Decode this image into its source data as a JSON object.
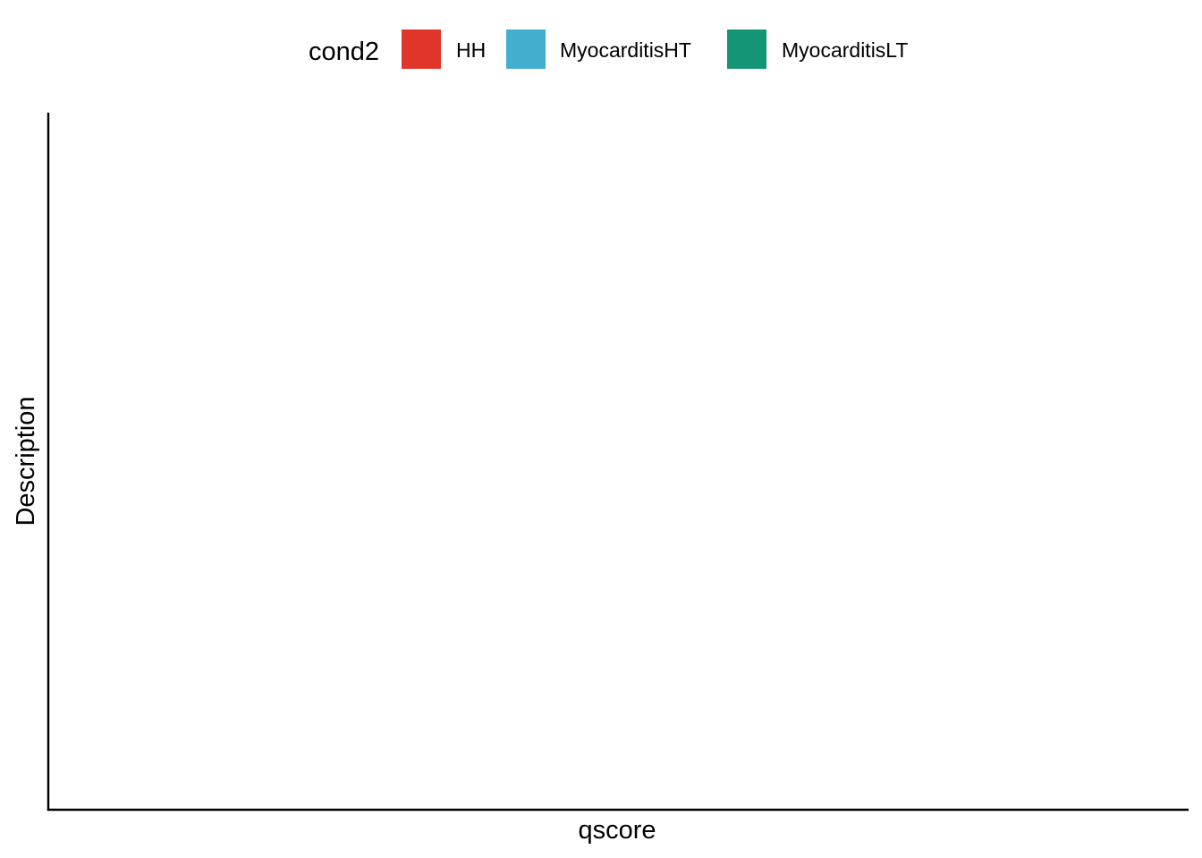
{
  "chart_data": {
    "type": "bar",
    "title": "",
    "xlabel": "qscore",
    "ylabel": "Description",
    "categories": [],
    "series": [],
    "grid": false,
    "legend": {
      "placement": "top",
      "title": "cond2",
      "entries": [
        {
          "label": "HH",
          "color": "#E0352B"
        },
        {
          "label": "MyocarditisHT",
          "color": "#43AFCF"
        },
        {
          "label": "MyocarditisLT",
          "color": "#149575"
        }
      ]
    },
    "axis_color": "#000000",
    "background": "#FFFFFF"
  }
}
